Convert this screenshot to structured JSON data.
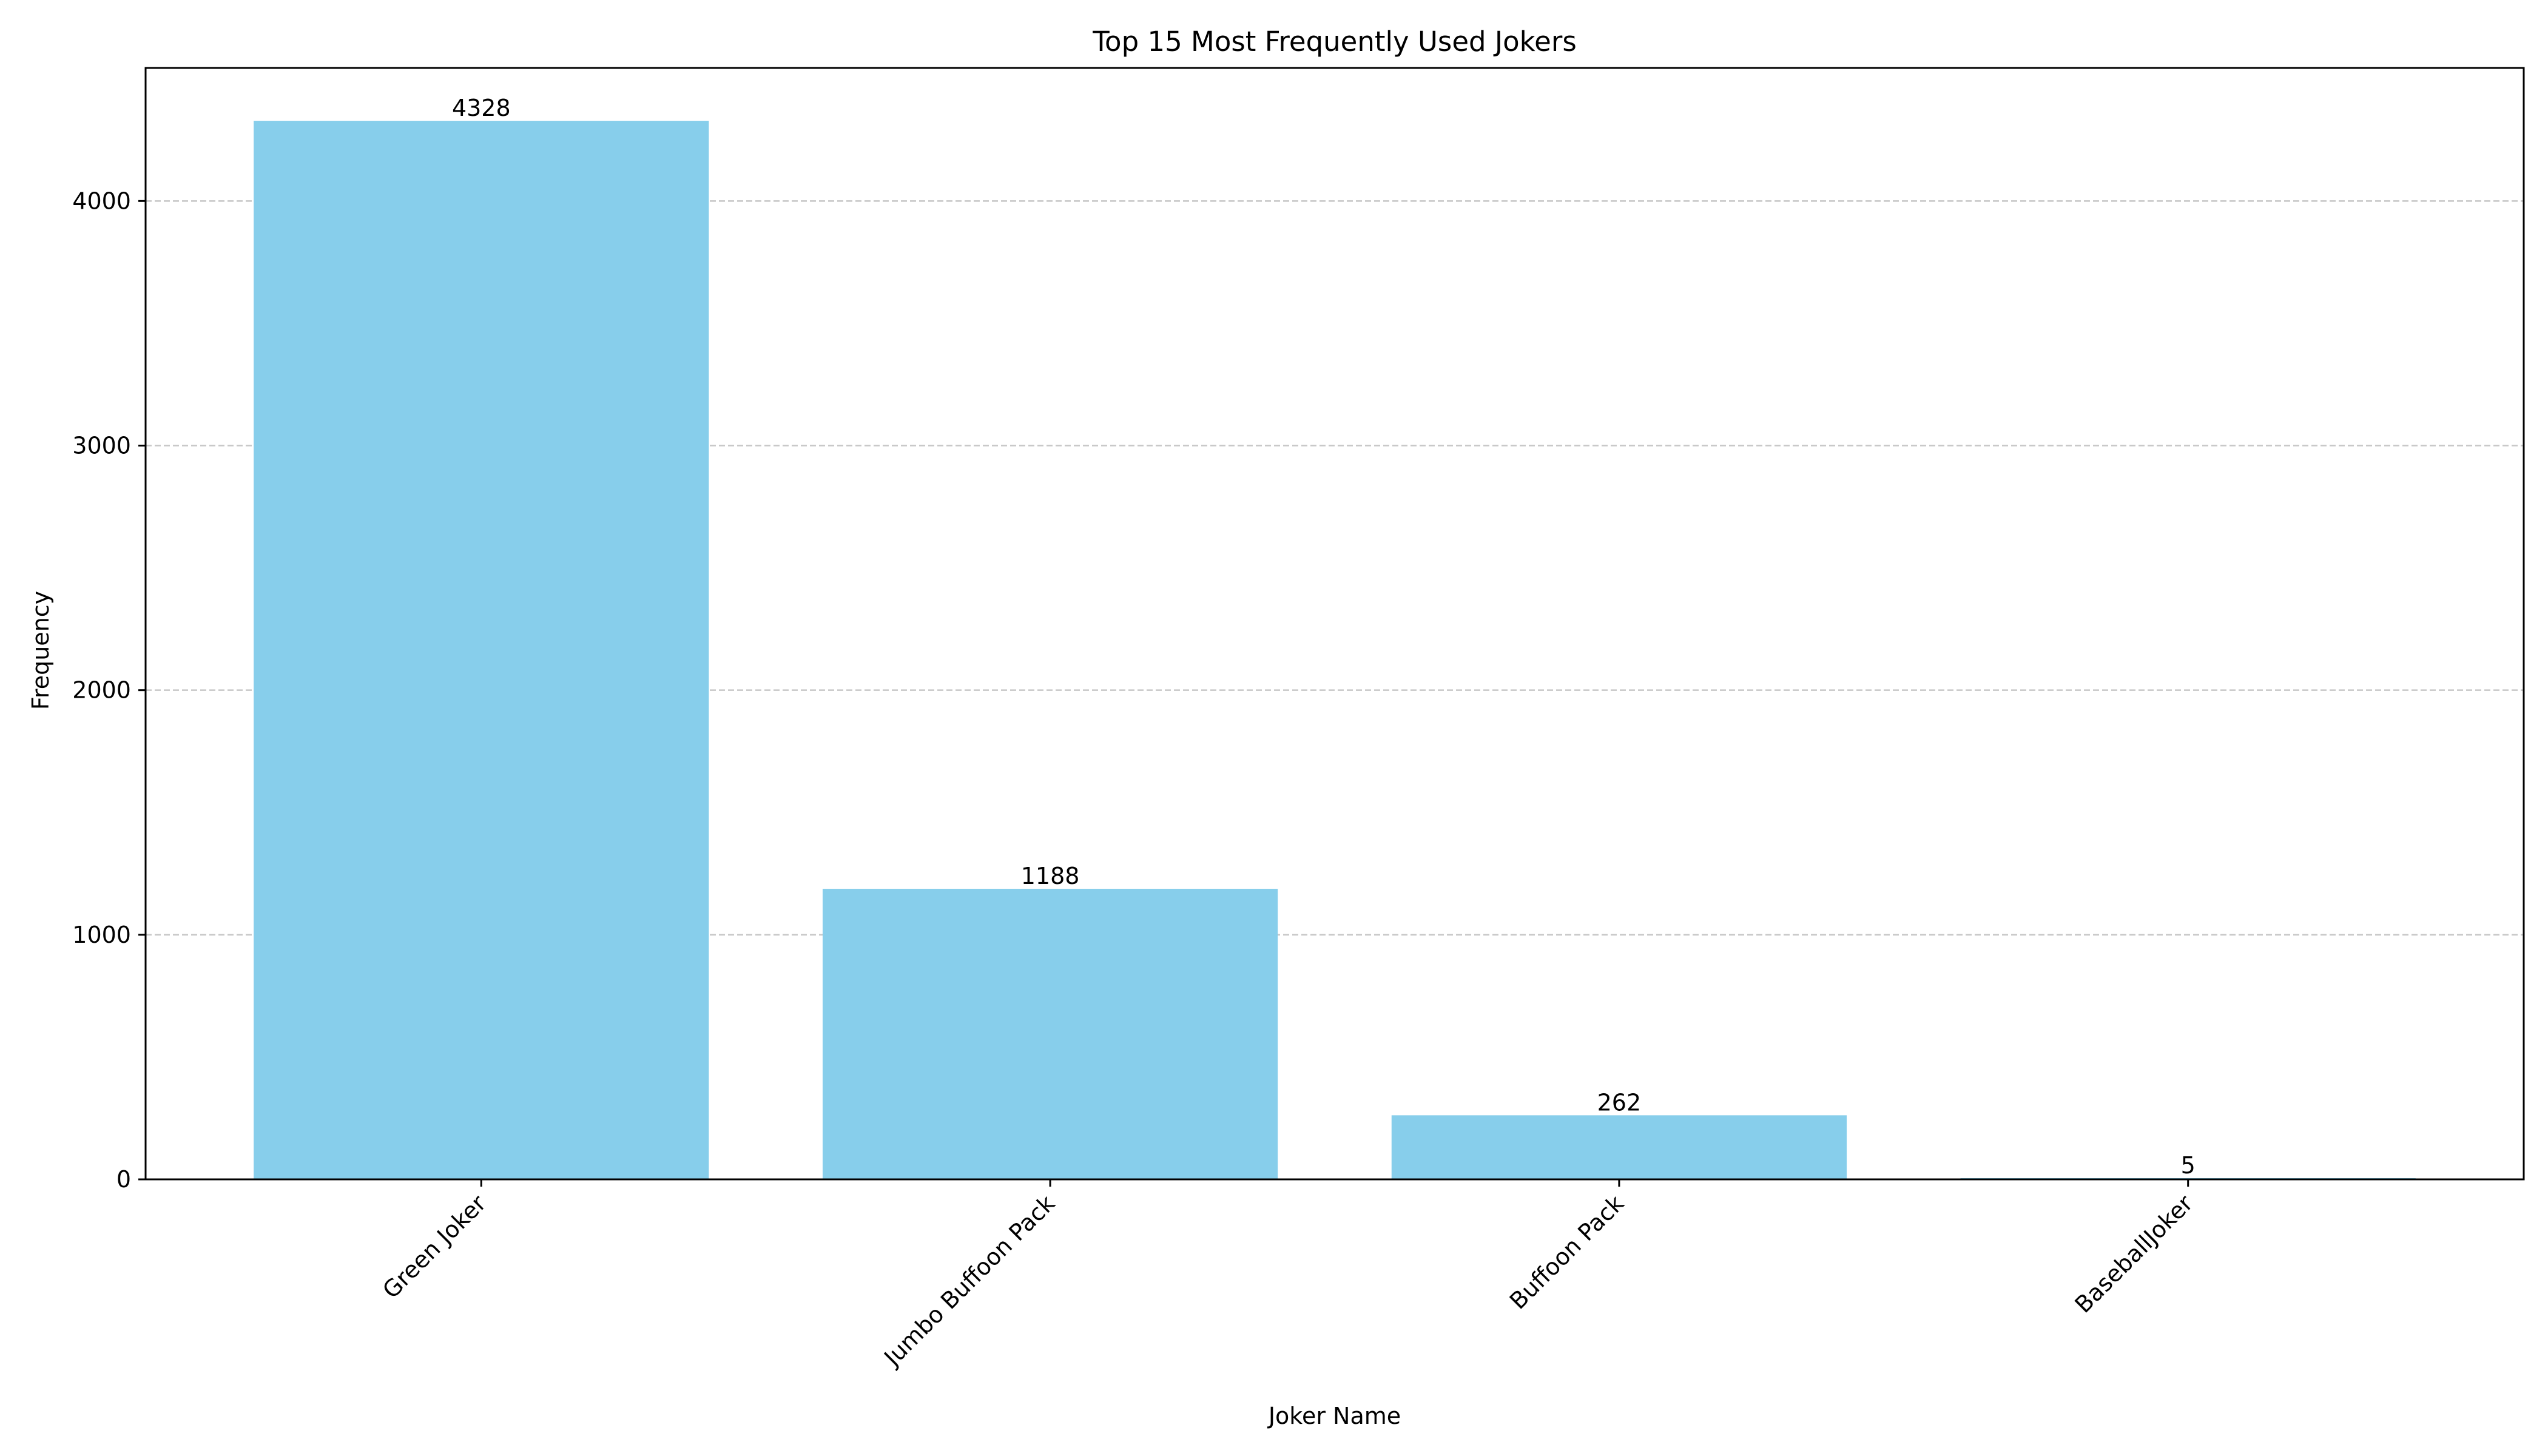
{
  "chart_data": {
    "type": "bar",
    "title": "Top 15 Most Frequently Used Jokers",
    "xlabel": "Joker Name",
    "ylabel": "Frequency",
    "categories": [
      "Green Joker",
      "Jumbo Buffoon Pack",
      "Buffoon Pack",
      "BaseballJoker"
    ],
    "values": [
      4328,
      1188,
      262,
      5
    ],
    "ylim": [
      0,
      4544
    ],
    "yticks": [
      0,
      1000,
      2000,
      3000,
      4000
    ],
    "grid": "y-axis dashed",
    "bar_color": "#87CEEB",
    "data_labels": true,
    "xtick_rotation": 45
  }
}
